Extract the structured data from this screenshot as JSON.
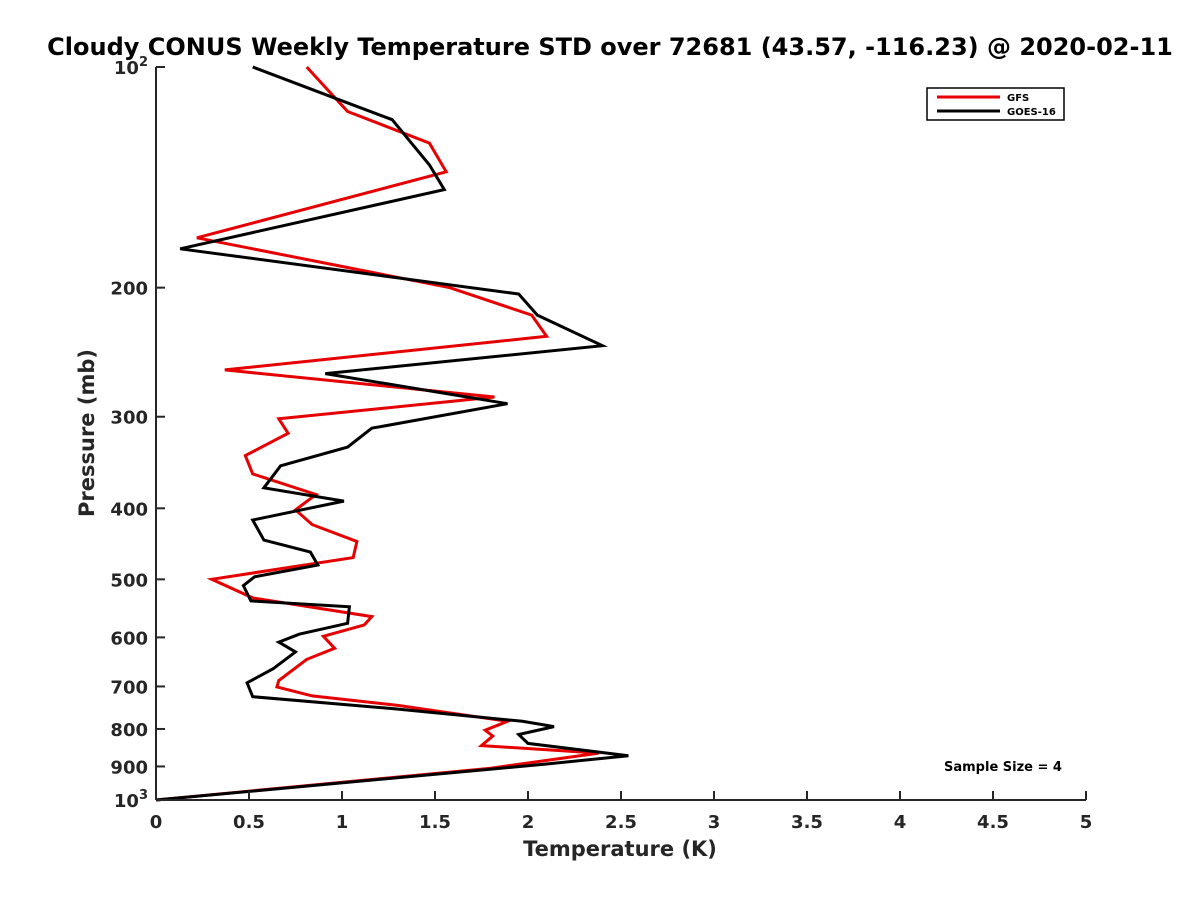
{
  "chart_data": {
    "type": "line",
    "title": "Cloudy CONUS Weekly Temperature STD over 72681 (43.57, -116.23) @ 2020-02-11",
    "xlabel": "Temperature (K)",
    "ylabel": "Pressure (mb)",
    "xlim": [
      0,
      5
    ],
    "ylim": [
      100,
      1000
    ],
    "y_scale": "log",
    "y_reversed": true,
    "x_ticks": [
      "0",
      "0.5",
      "1",
      "1.5",
      "2",
      "2.5",
      "3",
      "3.5",
      "4",
      "4.5",
      "5"
    ],
    "y_ticks": [
      {
        "value": 100,
        "base": "10",
        "exp": "2"
      },
      {
        "value": 200,
        "label": "200"
      },
      {
        "value": 300,
        "label": "300"
      },
      {
        "value": 400,
        "label": "400"
      },
      {
        "value": 500,
        "label": "500"
      },
      {
        "value": 600,
        "label": "600"
      },
      {
        "value": 700,
        "label": "700"
      },
      {
        "value": 800,
        "label": "800"
      },
      {
        "value": 900,
        "label": "900"
      },
      {
        "value": 1000,
        "base": "10",
        "exp": "3"
      }
    ],
    "grid": false,
    "legend_position": "top-right",
    "series": [
      {
        "name": "GFS",
        "color": "#e60000",
        "points": [
          [
            0.81,
            100
          ],
          [
            1.03,
            115
          ],
          [
            1.47,
            127
          ],
          [
            1.56,
            139
          ],
          [
            0.22,
            171
          ],
          [
            1.58,
            200
          ],
          [
            2.02,
            218
          ],
          [
            2.1,
            233
          ],
          [
            0.37,
            259
          ],
          [
            1.82,
            282
          ],
          [
            0.66,
            302
          ],
          [
            0.71,
            316
          ],
          [
            0.48,
            339
          ],
          [
            0.52,
            359
          ],
          [
            0.86,
            383
          ],
          [
            0.75,
            402
          ],
          [
            0.84,
            421
          ],
          [
            1.08,
            444
          ],
          [
            1.06,
            467
          ],
          [
            0.3,
            500
          ],
          [
            0.52,
            530
          ],
          [
            1.16,
            562
          ],
          [
            1.12,
            577
          ],
          [
            0.9,
            598
          ],
          [
            0.96,
            621
          ],
          [
            0.81,
            643
          ],
          [
            0.66,
            687
          ],
          [
            0.65,
            701
          ],
          [
            0.84,
            721
          ],
          [
            1.3,
            743
          ],
          [
            1.89,
            781
          ],
          [
            1.77,
            803
          ],
          [
            1.81,
            818
          ],
          [
            1.75,
            843
          ],
          [
            2.38,
            863
          ],
          [
            1.8,
            905
          ],
          [
            0,
            1000
          ]
        ]
      },
      {
        "name": "GOES-16",
        "color": "#000000",
        "points": [
          [
            0.52,
            100
          ],
          [
            0.95,
            110
          ],
          [
            1.27,
            118
          ],
          [
            1.47,
            136
          ],
          [
            1.55,
            147
          ],
          [
            0.13,
            177
          ],
          [
            1.95,
            204
          ],
          [
            2.05,
            218
          ],
          [
            2.4,
            240
          ],
          [
            0.91,
            262
          ],
          [
            1.89,
            288
          ],
          [
            1.16,
            311
          ],
          [
            1.03,
            330
          ],
          [
            0.67,
            350
          ],
          [
            0.58,
            375
          ],
          [
            1.01,
            391
          ],
          [
            0.52,
            415
          ],
          [
            0.58,
            442
          ],
          [
            0.83,
            459
          ],
          [
            0.87,
            478
          ],
          [
            0.53,
            496
          ],
          [
            0.47,
            510
          ],
          [
            0.51,
            535
          ],
          [
            1.04,
            545
          ],
          [
            1.03,
            574
          ],
          [
            0.77,
            594
          ],
          [
            0.66,
            609
          ],
          [
            0.75,
            628
          ],
          [
            0.63,
            662
          ],
          [
            0.49,
            692
          ],
          [
            0.52,
            723
          ],
          [
            1.28,
            751
          ],
          [
            1.97,
            781
          ],
          [
            2.14,
            794
          ],
          [
            1.95,
            814
          ],
          [
            2.0,
            837
          ],
          [
            2.54,
            870
          ],
          [
            2.1,
            893
          ],
          [
            0,
            1000
          ]
        ]
      }
    ],
    "annotations": [
      {
        "text": "Sample Size = 4",
        "x": 4.7,
        "y": 915
      }
    ]
  }
}
